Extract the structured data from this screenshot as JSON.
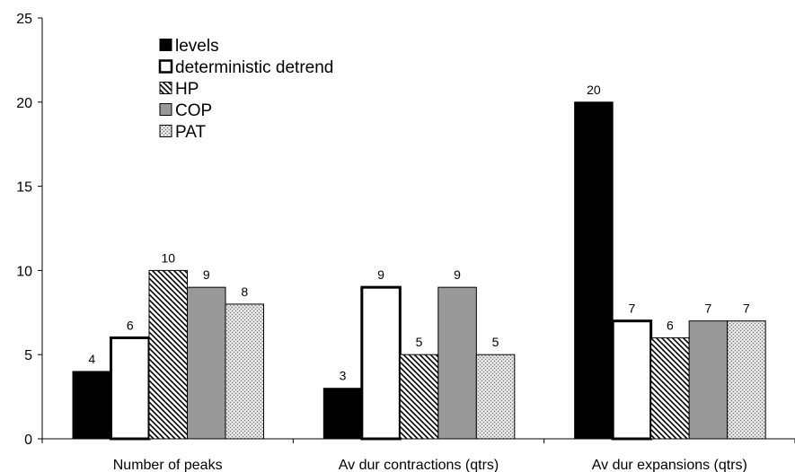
{
  "chart_data": {
    "type": "bar",
    "title": "",
    "xlabel": "",
    "ylabel": "",
    "ylim": [
      0,
      25
    ],
    "yticks": [
      0,
      5,
      10,
      15,
      20,
      25
    ],
    "grid": false,
    "legend_position": "top-left",
    "categories": [
      "Number of peaks",
      "Av dur contractions (qtrs)",
      "Av dur expansions (qtrs)"
    ],
    "series": [
      {
        "name": "levels",
        "values": [
          4,
          3,
          20
        ],
        "style": "solid-black"
      },
      {
        "name": "deterministic detrend",
        "values": [
          6,
          9,
          7
        ],
        "style": "white-thick-outline"
      },
      {
        "name": "HP",
        "values": [
          10,
          5,
          6
        ],
        "style": "diagonal-hatch"
      },
      {
        "name": "COP",
        "values": [
          9,
          9,
          7
        ],
        "style": "solid-gray"
      },
      {
        "name": "PAT",
        "values": [
          8,
          5,
          7
        ],
        "style": "dotted-crosshatch"
      }
    ],
    "colors": {
      "levels": "#000000",
      "deterministic_detrend": "#ffffff",
      "HP": "#000000",
      "COP": "#999999",
      "PAT": "#bfbfbf"
    }
  }
}
